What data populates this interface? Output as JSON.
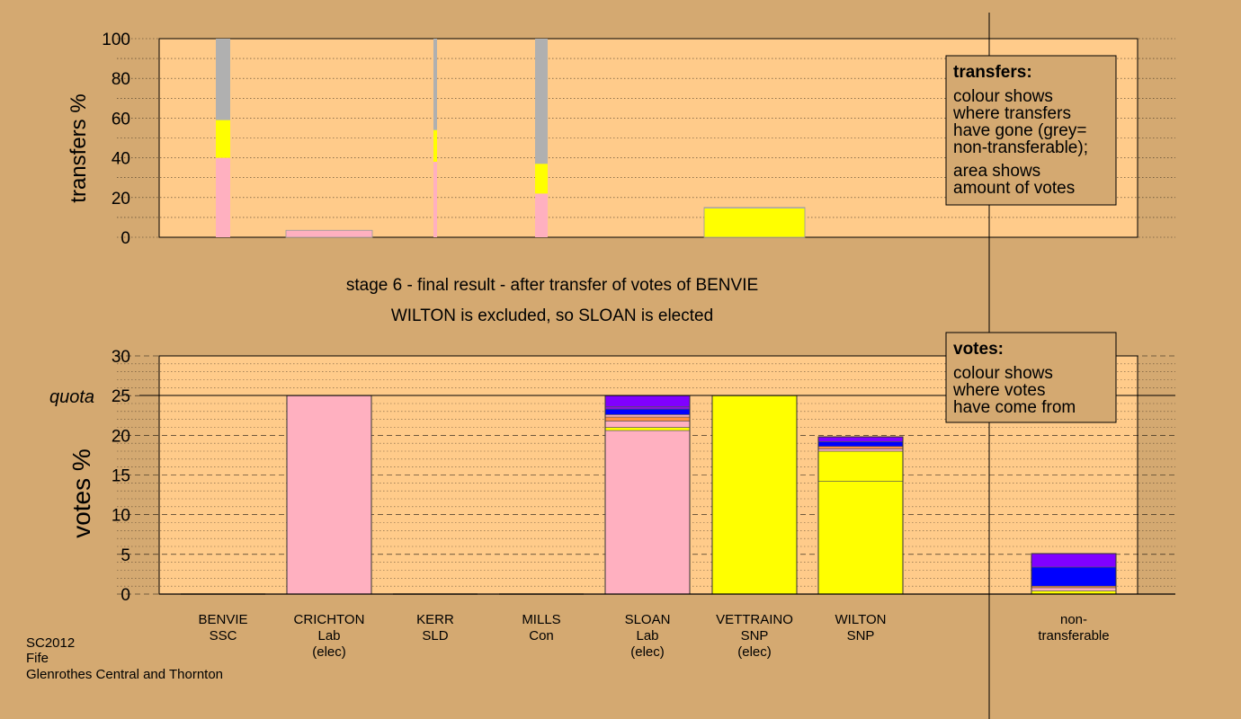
{
  "chart_data": [
    {
      "type": "bar",
      "ylabel": "transfers %",
      "ylim": [
        0,
        100
      ],
      "yticks": [
        0,
        20,
        40,
        60,
        80,
        100
      ],
      "categories": [
        "BENVIE",
        "CRICHTON",
        "KERR",
        "MILLS",
        "SLOAN",
        "VETTRAINO",
        "WILTON",
        "non-transferable"
      ],
      "columns": [
        {
          "candidate": "BENVIE",
          "segments": [
            {
              "color": "#ffb0c0",
              "from": 0,
              "to": 40
            },
            {
              "color": "#ffff00",
              "from": 40,
              "to": 59
            },
            {
              "color": "#b0b0b0",
              "from": 59,
              "to": 100
            }
          ]
        },
        {
          "candidate": "CRICHTON",
          "segments": [
            {
              "color": "#ffb0c0",
              "from": 0,
              "to": 3.5
            }
          ]
        },
        {
          "candidate": "KERR",
          "segments": [
            {
              "color": "#ffb0c0",
              "from": 0,
              "to": 38
            },
            {
              "color": "#ffff00",
              "from": 38,
              "to": 54
            },
            {
              "color": "#b0b0b0",
              "from": 54,
              "to": 100
            }
          ]
        },
        {
          "candidate": "MILLS",
          "segments": [
            {
              "color": "#ffb0c0",
              "from": 0,
              "to": 22
            },
            {
              "color": "#ffff00",
              "from": 22,
              "to": 37
            },
            {
              "color": "#b0b0b0",
              "from": 37,
              "to": 100
            }
          ]
        },
        {
          "candidate": "VETTRAINO",
          "segments": [
            {
              "color": "#ffff00",
              "from": 0,
              "to": 14.5
            },
            {
              "color": "#b0b0b0",
              "from": 14.5,
              "to": 15
            }
          ]
        }
      ],
      "legend": {
        "title": "transfers:",
        "lines": [
          "colour shows",
          "where transfers",
          "have gone (grey=",
          "non-transferable);"
        ],
        "lines2": [
          "area shows",
          "amount of votes"
        ]
      }
    },
    {
      "type": "bar",
      "ylabel": "votes %",
      "ylim": [
        0,
        30
      ],
      "yticks": [
        0,
        5,
        10,
        15,
        20,
        25,
        30
      ],
      "quota": 25,
      "quota_label": "quota",
      "categories": [
        "BENVIE",
        "CRICHTON",
        "KERR",
        "MILLS",
        "SLOAN",
        "VETTRAINO",
        "WILTON",
        "non-transferable"
      ],
      "series": [
        {
          "candidate": "BENVIE",
          "segments": []
        },
        {
          "candidate": "CRICHTON",
          "segments": [
            {
              "color": "#ffb0c0",
              "from": 0,
              "to": 25
            }
          ]
        },
        {
          "candidate": "KERR",
          "segments": []
        },
        {
          "candidate": "MILLS",
          "segments": []
        },
        {
          "candidate": "SLOAN",
          "segments": [
            {
              "color": "#ffb0c0",
              "from": 0,
              "to": 20.6
            },
            {
              "color": "#ffff00",
              "from": 20.6,
              "to": 21
            },
            {
              "color": "#ffb0c0",
              "from": 21,
              "to": 21.8
            },
            {
              "color": "#ff9040",
              "from": 21.8,
              "to": 22.3
            },
            {
              "color": "#ffb0c0",
              "from": 22.3,
              "to": 22.6
            },
            {
              "color": "#0000ff",
              "from": 22.6,
              "to": 23.3
            },
            {
              "color": "#9010e0",
              "from": 23.3,
              "to": 23.6
            },
            {
              "color": "#8000ff",
              "from": 23.6,
              "to": 25
            }
          ]
        },
        {
          "candidate": "VETTRAINO",
          "segments": [
            {
              "color": "#ffff00",
              "from": 0,
              "to": 25
            }
          ]
        },
        {
          "candidate": "WILTON",
          "segments": [
            {
              "color": "#ffff00",
              "from": 0,
              "to": 14.2
            },
            {
              "color": "#ffff00",
              "from": 14.2,
              "to": 18
            },
            {
              "color": "#ffb0c0",
              "from": 18,
              "to": 18.3
            },
            {
              "color": "#ff9040",
              "from": 18.3,
              "to": 18.6
            },
            {
              "color": "#0000ff",
              "from": 18.6,
              "to": 19.2
            },
            {
              "color": "#8000ff",
              "from": 19.2,
              "to": 19.8
            }
          ]
        },
        {
          "candidate": "non-transferable",
          "segments": [
            {
              "color": "#ffff00",
              "from": 0,
              "to": 0.4
            },
            {
              "color": "#ffb0c0",
              "from": 0.4,
              "to": 0.8
            },
            {
              "color": "#ff9040",
              "from": 0.8,
              "to": 1
            },
            {
              "color": "#0000ff",
              "from": 1,
              "to": 3.4
            },
            {
              "color": "#8000ff",
              "from": 3.4,
              "to": 5.1
            }
          ]
        }
      ],
      "legend": {
        "title": "votes:",
        "lines": [
          "colour shows",
          "where votes",
          "have come from"
        ]
      }
    }
  ],
  "titles": {
    "line1": "stage 6 - final result - after transfer of votes of BENVIE",
    "line2": "WILTON is excluded, so SLOAN is elected"
  },
  "candidate_labels": [
    {
      "name": "BENVIE",
      "party": "SSC",
      "status": ""
    },
    {
      "name": "CRICHTON",
      "party": "Lab",
      "status": "(elec)"
    },
    {
      "name": "KERR",
      "party": "SLD",
      "status": ""
    },
    {
      "name": "MILLS",
      "party": "Con",
      "status": ""
    },
    {
      "name": "SLOAN",
      "party": "Lab",
      "status": "(elec)"
    },
    {
      "name": "VETTRAINO",
      "party": "SNP",
      "status": "(elec)"
    },
    {
      "name": "WILTON",
      "party": "SNP",
      "status": ""
    },
    {
      "name": "non-",
      "party": "transferable",
      "status": ""
    }
  ],
  "footer": {
    "line1": "SC2012",
    "line2": "Fife",
    "line3": "Glenrothes Central and Thornton"
  },
  "colors": {
    "background": "#d4a971",
    "plot_bg": "#ffcb8a",
    "pink_lab": "#ffb0c0",
    "yellow_snp": "#ffff00",
    "grey_nontransferable": "#b0b0b0",
    "blue_con": "#0000ff",
    "purple_ssc": "#8000ff",
    "orange_sld": "#ff9040"
  }
}
